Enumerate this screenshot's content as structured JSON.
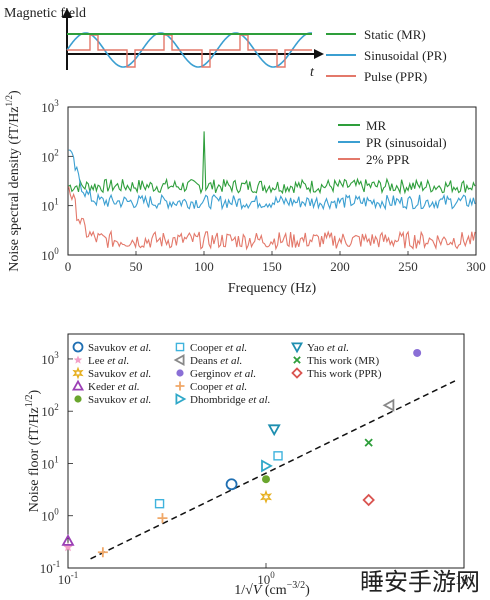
{
  "diagram": {
    "y_title": "Magnetic field",
    "t_label": "t",
    "legend": [
      {
        "label": "Static (MR)",
        "color": "#2e9e3b"
      },
      {
        "label": "Sinusoidal (PR)",
        "color": "#3b9fd1"
      },
      {
        "label": "Pulse (PPR)",
        "color": "#e3786a"
      }
    ]
  },
  "watermark": "睡安手游网",
  "chart_data": [
    {
      "type": "line",
      "xlabel": "Frequency (Hz)",
      "ylabel": "Noise spectral density (fT/Hz^1/2)",
      "xlim": [
        0,
        300
      ],
      "ylim": [
        1,
        1000
      ],
      "yscale": "log",
      "xticks": [
        "0",
        "50",
        "100",
        "150",
        "200",
        "250",
        "300"
      ],
      "yticks": [
        "10^0",
        "10^1",
        "10^2",
        "10^3"
      ],
      "legend_position": "top-right",
      "series": [
        {
          "name": "MR",
          "color": "#2e9e3b",
          "baseline": 25,
          "spike": {
            "x": 100,
            "y": 320
          }
        },
        {
          "name": "PR (sinusoidal)",
          "color": "#3b9fd1",
          "baseline": 12,
          "start": 180
        },
        {
          "name": "2% PPR",
          "color": "#e3786a",
          "baseline": 2,
          "start": 30
        }
      ]
    },
    {
      "type": "scatter",
      "xlabel": "1/√V (cm^-3/2)",
      "ylabel": "Noise floor (fT/Hz^1/2)",
      "xscale": "log",
      "yscale": "log",
      "xlim": [
        0.1,
        10
      ],
      "ylim": [
        0.1,
        3000
      ],
      "xticks": [
        "10^-1",
        "10^0",
        "10^1"
      ],
      "yticks": [
        "10^-1",
        "10^0",
        "10^1",
        "10^2",
        "10^3"
      ],
      "fit_line": {
        "x": [
          0.13,
          9.0
        ],
        "y": [
          0.15,
          380
        ]
      },
      "series": [
        {
          "name": "Savukov et al.",
          "marker": "circle-open",
          "color": "#1f6fb2",
          "x": [
            0.67
          ],
          "y": [
            4
          ]
        },
        {
          "name": "Lee et al.",
          "marker": "star",
          "color": "#f2a0c8",
          "x": [
            0.1
          ],
          "y": [
            0.25
          ]
        },
        {
          "name": "Savukov et al.",
          "marker": "hexagram",
          "color": "#e6b020",
          "x": [
            1.0
          ],
          "y": [
            2.3
          ]
        },
        {
          "name": "Keder et al.",
          "marker": "triangle-up-open",
          "color": "#9b3fb5",
          "x": [
            0.1
          ],
          "y": [
            0.33
          ]
        },
        {
          "name": "Savukov et al.",
          "marker": "circle-filled",
          "color": "#6aa62e",
          "x": [
            1.0
          ],
          "y": [
            5
          ]
        },
        {
          "name": "Cooper et al.",
          "marker": "square-open",
          "color": "#3fb3dd",
          "x": [
            0.29,
            1.15
          ],
          "y": [
            1.7,
            14
          ]
        },
        {
          "name": "Deans et al.",
          "marker": "triangle-left-open",
          "color": "#888888",
          "x": [
            4.2
          ],
          "y": [
            130
          ]
        },
        {
          "name": "Gerginov et al.",
          "marker": "circle-filled",
          "color": "#8a6fd6",
          "x": [
            5.8
          ],
          "y": [
            1300
          ]
        },
        {
          "name": "Cooper et al.",
          "marker": "plus",
          "color": "#f0a868",
          "x": [
            0.15,
            0.3
          ],
          "y": [
            0.2,
            0.9
          ]
        },
        {
          "name": "Dhombridge et al.",
          "marker": "triangle-right-open",
          "color": "#2fa8c8",
          "x": [
            1.0
          ],
          "y": [
            9
          ]
        },
        {
          "name": "Yao et al.",
          "marker": "triangle-down-open",
          "color": "#1e8fb0",
          "x": [
            1.1
          ],
          "y": [
            45
          ]
        },
        {
          "name": "This work (MR)",
          "marker": "x",
          "color": "#2e9e3b",
          "x": [
            3.3
          ],
          "y": [
            25
          ]
        },
        {
          "name": "This work (PPR)",
          "marker": "diamond-open",
          "color": "#d9534f",
          "x": [
            3.3
          ],
          "y": [
            2
          ]
        }
      ],
      "legend_labels": [
        [
          "Savukov ",
          "et al."
        ],
        [
          "Lee ",
          "et al."
        ],
        [
          "Savukov ",
          "et al."
        ],
        [
          "Keder ",
          "et al."
        ],
        [
          "Savukov ",
          "et al."
        ],
        [
          "Cooper ",
          "et al."
        ],
        [
          "Deans ",
          "et al."
        ],
        [
          "Gerginov ",
          "et al."
        ],
        [
          "Cooper ",
          "et al."
        ],
        [
          "Dhombridge ",
          "et al."
        ],
        [
          "Yao ",
          "et al."
        ],
        [
          "This work (MR)",
          ""
        ],
        [
          "This work (PPR)",
          ""
        ]
      ]
    }
  ]
}
